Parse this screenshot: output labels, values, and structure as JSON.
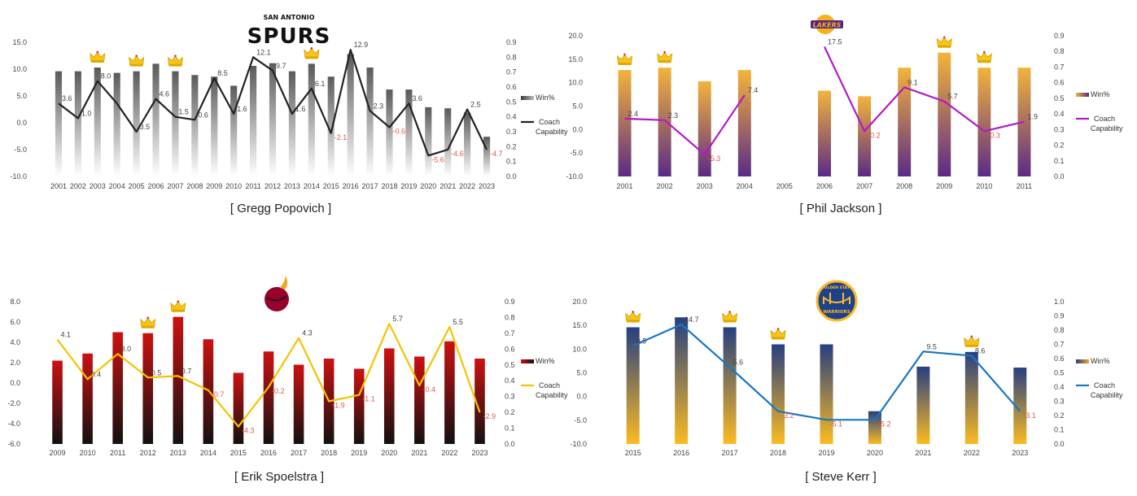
{
  "chart_data": [
    {
      "type": "bar",
      "title": "",
      "caption": "[ Gregg Popovich ]",
      "logo_text": "SAN ANTONIO",
      "logo_word": "SPURS",
      "logo_icon": "spurs-logo",
      "categories": [
        "2001",
        "2002",
        "2003",
        "2004",
        "2005",
        "2006",
        "2007",
        "2008",
        "2009",
        "2010",
        "2011",
        "2012",
        "2013",
        "2014",
        "2015",
        "2016",
        "2017",
        "2018",
        "2019",
        "2020",
        "2021",
        "2022",
        "2023"
      ],
      "series": [
        {
          "name": "Win%",
          "kind": "bar",
          "axis": "left",
          "values": [
            9.6,
            9.6,
            10.3,
            9.3,
            9.6,
            11.0,
            9.6,
            8.9,
            8.6,
            6.9,
            10.6,
            11.1,
            9.6,
            11.0,
            8.6,
            12.8,
            10.3,
            6.2,
            6.2,
            2.9,
            2.7,
            1.9,
            -2.6
          ]
        },
        {
          "name": "Coach Capability",
          "kind": "line",
          "axis": "right",
          "values": [
            0.49,
            0.39,
            0.64,
            0.49,
            0.3,
            0.52,
            0.4,
            0.38,
            0.66,
            0.42,
            0.8,
            0.71,
            0.42,
            0.59,
            0.29,
            0.85,
            0.44,
            0.33,
            0.49,
            0.14,
            0.18,
            0.45,
            0.18
          ]
        }
      ],
      "data_labels": [
        "3.6",
        "1.0",
        "8.0",
        "",
        "3.5",
        "4.6",
        "1.5",
        "0.6",
        "8.5",
        "1.6",
        "12.1",
        "9.7",
        "1.6",
        "6.1",
        "-2.1",
        "12.9",
        "2.3",
        "-0.6",
        "3.6",
        "-5.6",
        "-4.6",
        "2.5",
        "-4.7"
      ],
      "crown_years": [
        "2003",
        "2005",
        "2007",
        "2014"
      ],
      "ylim": [
        -10,
        15
      ],
      "y2lim": [
        0,
        0.9
      ],
      "yticks": [
        "15.0",
        "10.0",
        "5.0",
        "0.0",
        "-5.0",
        "-10.0"
      ],
      "y2ticks": [
        "0.9",
        "0.8",
        "0.7",
        "0.6",
        "0.5",
        "0.4",
        "0.3",
        "0.2",
        "0.1",
        "0.0"
      ],
      "colors": {
        "bar_top": "#5a5a5a",
        "bar_bottom": "#ffffff",
        "line": "#222222",
        "legend_bar_top": "#3a3a3a",
        "legend_bar_bottom": "#bdbdbd"
      },
      "legend": [
        "Win%",
        "Coach",
        "Capability"
      ],
      "legend_position": "right",
      "grid": true
    },
    {
      "type": "bar",
      "title": "",
      "caption": "[ Phil Jackson ]",
      "logo_word": "LAKERS",
      "logo_icon": "lakers-logo",
      "categories": [
        "2001",
        "2002",
        "2003",
        "2004",
        "2005",
        "2006",
        "2007",
        "2008",
        "2009",
        "2010",
        "2011"
      ],
      "series": [
        {
          "name": "Win%",
          "kind": "bar",
          "axis": "left",
          "values": [
            12.7,
            13.2,
            10.3,
            12.7,
            null,
            8.3,
            7.1,
            13.2,
            16.4,
            13.2,
            13.2
          ]
        },
        {
          "name": "Coach Capability",
          "kind": "line",
          "axis": "right",
          "values": [
            0.37,
            0.36,
            0.14,
            0.52,
            null,
            0.83,
            0.29,
            0.57,
            0.48,
            0.29,
            0.35
          ]
        }
      ],
      "data_labels": [
        "2.4",
        "2.3",
        "-5.3",
        "7.4",
        "",
        "17.5",
        "-0.2",
        "9.1",
        "5.7",
        "-0.3",
        "1.9"
      ],
      "crown_years": [
        "2001",
        "2002",
        "2009",
        "2010"
      ],
      "ylim": [
        -10,
        20
      ],
      "y2lim": [
        0,
        0.9
      ],
      "yticks": [
        "20.0",
        "15.0",
        "10.0",
        "5.0",
        "0.0",
        "-5.0",
        "-10.0"
      ],
      "y2ticks": [
        "0.9",
        "0.8",
        "0.7",
        "0.6",
        "0.5",
        "0.4",
        "0.3",
        "0.2",
        "0.1",
        "0.0"
      ],
      "colors": {
        "bar_top": "#f3b43a",
        "bar_bottom": "#5b2a86",
        "line": "#b419c8",
        "legend_bar_top": "#f3b43a",
        "legend_bar_bottom": "#5b2a86"
      },
      "legend": [
        "Win%",
        "Coach",
        "Capability"
      ],
      "legend_position": "right",
      "grid": true
    },
    {
      "type": "bar",
      "title": "",
      "caption": "[ Erik Spoelstra ]",
      "logo_icon": "heat-logo",
      "categories": [
        "2009",
        "2010",
        "2011",
        "2012",
        "2013",
        "2014",
        "2015",
        "2016",
        "2017",
        "2018",
        "2019",
        "2020",
        "2021",
        "2022",
        "2023"
      ],
      "series": [
        {
          "name": "Win%",
          "kind": "bar",
          "axis": "left",
          "values": [
            2.2,
            2.9,
            5.0,
            4.9,
            6.5,
            4.3,
            1.0,
            3.1,
            1.8,
            2.4,
            1.4,
            3.4,
            2.6,
            4.1,
            2.4
          ]
        },
        {
          "name": "Coach Capability",
          "kind": "line",
          "axis": "right",
          "values": [
            0.66,
            0.41,
            0.57,
            0.42,
            0.43,
            0.34,
            0.11,
            0.36,
            0.67,
            0.27,
            0.31,
            0.76,
            0.37,
            0.74,
            0.2
          ]
        }
      ],
      "data_labels": [
        "4.1",
        "0.4",
        "3.0",
        "0.5",
        "0.7",
        "-0.7",
        "-4.3",
        "-0.2",
        "4.3",
        "-1.9",
        "-1.1",
        "5.7",
        "-0.4",
        "5.5",
        "-2.9"
      ],
      "crown_years": [
        "2012",
        "2013"
      ],
      "ylim": [
        -6,
        8
      ],
      "y2lim": [
        0,
        0.9
      ],
      "yticks": [
        "8.0",
        "6.0",
        "4.0",
        "2.0",
        "0.0",
        "-2.0",
        "-4.0",
        "-6.0"
      ],
      "y2ticks": [
        "0.9",
        "0.8",
        "0.7",
        "0.6",
        "0.5",
        "0.4",
        "0.3",
        "0.2",
        "0.1",
        "0.0"
      ],
      "colors": {
        "bar_top": "#cc1111",
        "bar_bottom": "#111111",
        "line": "#f5c300",
        "legend_bar_top": "#cc1111",
        "legend_bar_bottom": "#111111"
      },
      "legend": [
        "Win%",
        "Coach",
        "Capability"
      ],
      "legend_position": "right",
      "grid": true
    },
    {
      "type": "bar",
      "title": "",
      "caption": "[ Steve Kerr ]",
      "logo_text": "GOLDEN STATE",
      "logo_word": "WARRIORS",
      "logo_icon": "warriors-logo",
      "categories": [
        "2015",
        "2016",
        "2017",
        "2018",
        "2019",
        "2020",
        "2021",
        "2022",
        "2023"
      ],
      "series": [
        {
          "name": "Win%",
          "kind": "bar",
          "axis": "left",
          "values": [
            14.6,
            16.7,
            14.6,
            11.0,
            11.0,
            -3.1,
            6.3,
            9.4,
            6.1
          ]
        },
        {
          "name": "Coach Capability",
          "kind": "line",
          "axis": "right",
          "values": [
            0.69,
            0.84,
            0.54,
            0.23,
            0.17,
            0.17,
            0.65,
            0.62,
            0.23
          ]
        }
      ],
      "data_labels": [
        "0.5",
        "14.7",
        "5.6",
        "-3.2",
        "-5.1",
        "-5.2",
        "9.5",
        "8.6",
        "-3.1"
      ],
      "crown_years": [
        "2015",
        "2017",
        "2018",
        "2022"
      ],
      "ylim": [
        -10,
        20
      ],
      "y2lim": [
        0,
        1.0
      ],
      "yticks": [
        "20.0",
        "15.0",
        "10.0",
        "5.0",
        "0.0",
        "-5.0",
        "-10.0"
      ],
      "y2ticks": [
        "1.0",
        "0.9",
        "0.8",
        "0.7",
        "0.6",
        "0.5",
        "0.4",
        "0.3",
        "0.2",
        "0.1",
        "0.0"
      ],
      "colors": {
        "bar_top": "#263f80",
        "bar_bottom": "#fbbb22",
        "line": "#1677c6",
        "legend_bar_top": "#263f80",
        "legend_bar_bottom": "#f5a623"
      },
      "legend": [
        "Win%",
        "Coach",
        "Capability"
      ],
      "legend_position": "right",
      "grid": true
    }
  ]
}
